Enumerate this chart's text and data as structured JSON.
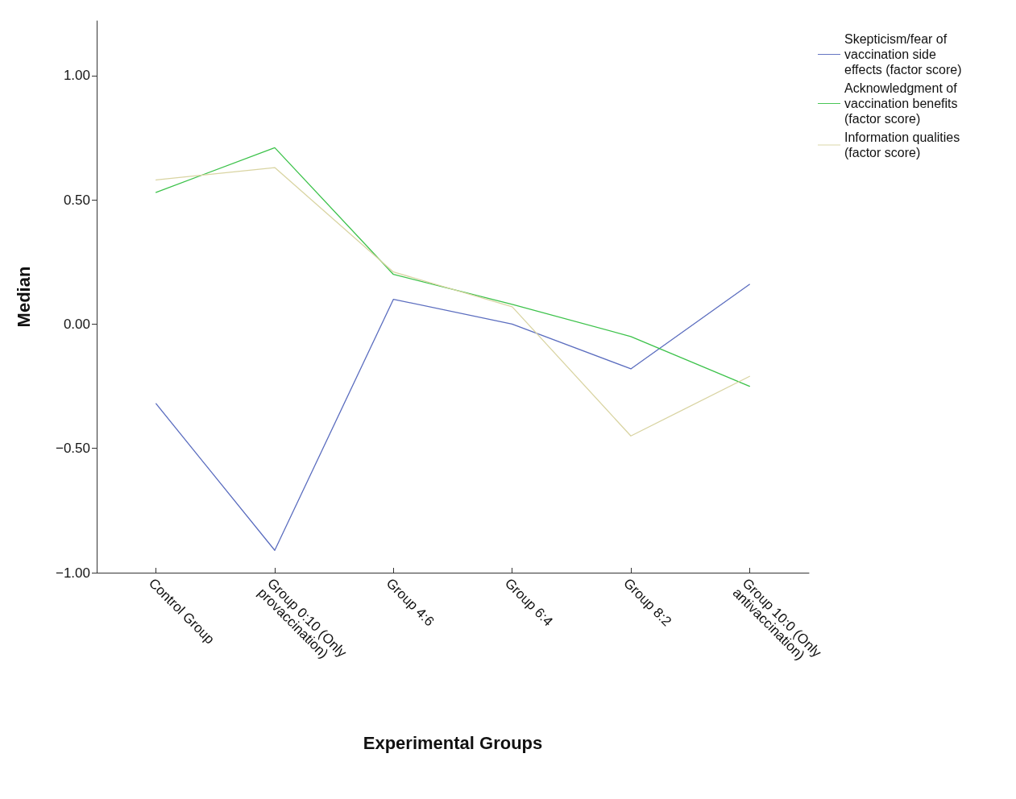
{
  "chart_data": {
    "type": "line",
    "xlabel": "Experimental Groups",
    "ylabel": "Median",
    "categories": [
      "Control Group",
      "Group 0:10 (Only provaccination)",
      "Group 4:6",
      "Group 6:4",
      "Group 8:2",
      "Group 10:0 (Only antivaccination)"
    ],
    "series": [
      {
        "name": "Skepticism/fear of vaccination side effects (factor score)",
        "color": "#5b6dbf",
        "values": [
          -0.32,
          -0.91,
          0.1,
          0.0,
          -0.18,
          0.16
        ]
      },
      {
        "name": "Acknowledgment of vaccination benefits (factor score)",
        "color": "#3cc24a",
        "values": [
          0.53,
          0.71,
          0.2,
          0.08,
          -0.05,
          -0.25
        ]
      },
      {
        "name": "Information qualities (factor score)",
        "color": "#d9d4a2",
        "values": [
          0.58,
          0.63,
          0.21,
          0.07,
          -0.45,
          -0.21
        ]
      }
    ],
    "ylim": [
      -1,
      1.22
    ],
    "yticks": [
      {
        "value": -1,
        "label": "−1.00"
      },
      {
        "value": -0.5,
        "label": "−0.50"
      },
      {
        "value": 0,
        "label": "0.00"
      },
      {
        "value": 0.5,
        "label": "0.50"
      },
      {
        "value": 1,
        "label": "1.00"
      }
    ],
    "grid": false,
    "legend": "top right",
    "marker": "none",
    "line_style": "solid"
  }
}
